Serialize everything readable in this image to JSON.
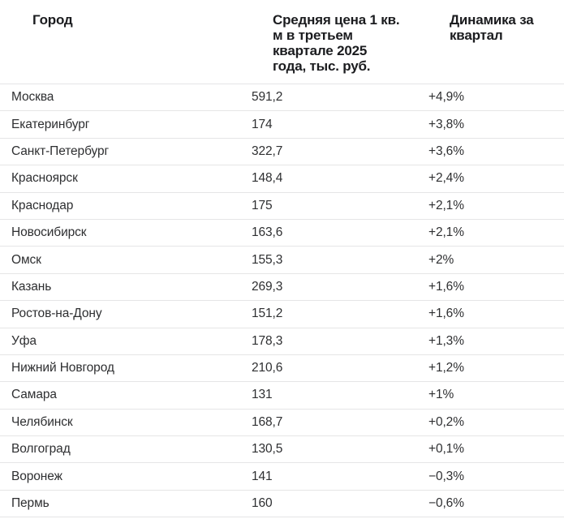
{
  "table": {
    "columns": [
      "Город",
      "Средняя цена 1 кв.\nм в третьем\nквартале 2025\nгода, тыс. руб.",
      "Динамика за\nквартал"
    ],
    "rows": [
      {
        "city": "Москва",
        "price": "591,2",
        "change": "+4,9%"
      },
      {
        "city": "Екатеринбург",
        "price": "174",
        "change": "+3,8%"
      },
      {
        "city": "Санкт-Петербург",
        "price": "322,7",
        "change": "+3,6%"
      },
      {
        "city": "Красноярск",
        "price": "148,4",
        "change": "+2,4%"
      },
      {
        "city": "Краснодар",
        "price": "175",
        "change": "+2,1%"
      },
      {
        "city": "Новосибирск",
        "price": "163,6",
        "change": "+2,1%"
      },
      {
        "city": "Омск",
        "price": "155,3",
        "change": "+2%"
      },
      {
        "city": "Казань",
        "price": "269,3",
        "change": "+1,6%"
      },
      {
        "city": "Ростов-на-Дону",
        "price": "151,2",
        "change": "+1,6%"
      },
      {
        "city": "Уфа",
        "price": "178,3",
        "change": "+1,3%"
      },
      {
        "city": "Нижний Новгород",
        "price": "210,6",
        "change": "+1,2%"
      },
      {
        "city": "Самара",
        "price": "131",
        "change": "+1%"
      },
      {
        "city": "Челябинск",
        "price": "168,7",
        "change": "+0,2%"
      },
      {
        "city": "Волгоград",
        "price": "130,5",
        "change": "+0,1%"
      },
      {
        "city": "Воронеж",
        "price": "141",
        "change": "−0,3%"
      },
      {
        "city": "Пермь",
        "price": "160",
        "change": "−0,6%"
      }
    ]
  },
  "chart_data": {
    "type": "table",
    "title": "Средняя цена 1 кв. м в третьем квартале 2025 года, тыс. руб.",
    "columns": [
      "Город",
      "Средняя цена 1 кв. м в третьем квартале 2025 года, тыс. руб.",
      "Динамика за квартал"
    ],
    "categories": [
      "Москва",
      "Екатеринбург",
      "Санкт-Петербург",
      "Красноярск",
      "Краснодар",
      "Новосибирск",
      "Омск",
      "Казань",
      "Ростов-на-Дону",
      "Уфа",
      "Нижний Новгород",
      "Самара",
      "Челябинск",
      "Волгоград",
      "Воронеж",
      "Пермь"
    ],
    "series": [
      {
        "name": "Средняя цена, тыс. руб.",
        "values": [
          591.2,
          174,
          322.7,
          148.4,
          175,
          163.6,
          155.3,
          269.3,
          151.2,
          178.3,
          210.6,
          131,
          168.7,
          130.5,
          141,
          160
        ]
      },
      {
        "name": "Динамика за квартал, %",
        "values": [
          4.9,
          3.8,
          3.6,
          2.4,
          2.1,
          2.1,
          2.0,
          1.6,
          1.6,
          1.3,
          1.2,
          1.0,
          0.2,
          0.1,
          -0.3,
          -0.6
        ]
      }
    ]
  },
  "colors": {
    "background": "#ffffff",
    "header_text": "#1b1c1f",
    "body_text": "#2e2f31",
    "divider": "#e5e5e6"
  }
}
